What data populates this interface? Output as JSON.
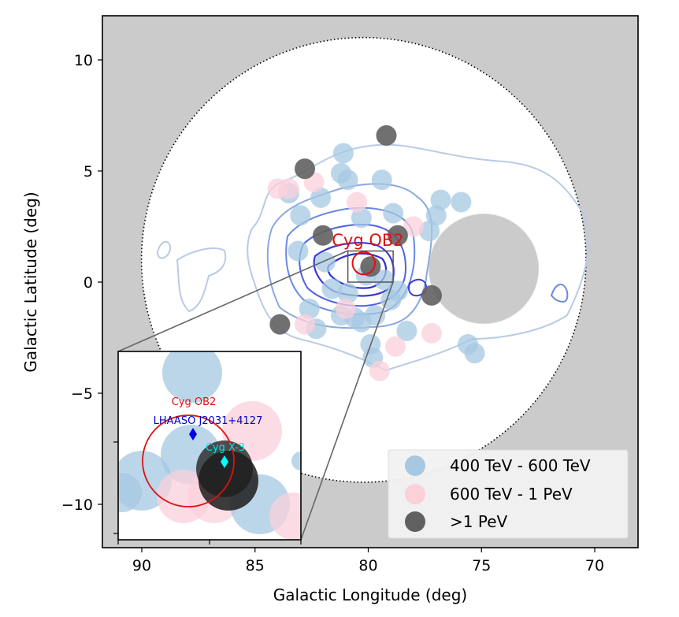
{
  "chart_data": {
    "type": "scatter",
    "xlabel": "Galactic Longitude (deg)",
    "ylabel": "Galactic Latitude (deg)",
    "xlim": [
      92,
      68
    ],
    "ylim": [
      -12,
      12
    ],
    "xticks": [
      90,
      85,
      80,
      75,
      70
    ],
    "yticks": [
      10,
      5,
      0,
      -5,
      -10
    ],
    "xtick_labels": [
      "90",
      "85",
      "80",
      "75",
      "70"
    ],
    "ytick_labels": [
      "10",
      "5",
      "0",
      "−5",
      "−10"
    ],
    "roi_circle": {
      "l": 80.2,
      "b": 1.0,
      "radius_deg": 9.9,
      "style": "dotted"
    },
    "masked_region": {
      "l": 74.9,
      "b": 0.6,
      "radius_deg": 2.45
    },
    "legend": {
      "position": "lower-right",
      "entries": [
        {
          "label": "400 TeV - 600 TeV",
          "color": "#a6c8e2"
        },
        {
          "label": "600 TeV - 1 PeV",
          "color": "#fbd0db"
        },
        {
          "label": ">1 PeV",
          "color": "#606060"
        }
      ]
    },
    "series": [
      {
        "name": "400 TeV - 600 TeV",
        "color": "#a6c8e2",
        "points": [
          [
            81.1,
            5.8
          ],
          [
            81.2,
            4.9
          ],
          [
            80.9,
            4.6
          ],
          [
            79.4,
            4.6
          ],
          [
            83.5,
            4.0
          ],
          [
            82.1,
            3.8
          ],
          [
            83.0,
            3.0
          ],
          [
            80.3,
            2.9
          ],
          [
            78.9,
            3.1
          ],
          [
            76.8,
            3.7
          ],
          [
            75.9,
            3.6
          ],
          [
            77.0,
            3.0
          ],
          [
            77.3,
            2.3
          ],
          [
            83.1,
            1.4
          ],
          [
            81.9,
            0.9
          ],
          [
            80.1,
            0.3
          ],
          [
            79.3,
            0.1
          ],
          [
            81.6,
            -0.3
          ],
          [
            82.6,
            -1.2
          ],
          [
            81.2,
            -1.5
          ],
          [
            80.3,
            -1.8
          ],
          [
            79.7,
            -1.5
          ],
          [
            78.3,
            -2.2
          ],
          [
            80.6,
            -1.6
          ],
          [
            79.0,
            -0.8
          ],
          [
            79.9,
            -2.8
          ],
          [
            79.8,
            -3.4
          ],
          [
            82.3,
            -2.1
          ],
          [
            75.6,
            -2.8
          ],
          [
            75.3,
            -3.2
          ],
          [
            80.9,
            -0.5
          ],
          [
            78.7,
            -0.4
          ]
        ]
      },
      {
        "name": "600 TeV - 1 PeV",
        "color": "#fbd0db",
        "points": [
          [
            84.0,
            4.2
          ],
          [
            83.5,
            4.2
          ],
          [
            82.4,
            4.5
          ],
          [
            80.5,
            3.6
          ],
          [
            81.0,
            -1.2
          ],
          [
            78.0,
            2.5
          ],
          [
            82.8,
            -1.9
          ],
          [
            78.8,
            -2.9
          ],
          [
            77.2,
            -2.3
          ],
          [
            79.5,
            -4.0
          ]
        ]
      },
      {
        "name": ">1 PeV",
        "color": "#606060",
        "points": [
          [
            79.2,
            6.6
          ],
          [
            82.8,
            5.1
          ],
          [
            82.0,
            2.1
          ],
          [
            78.7,
            2.1
          ],
          [
            79.9,
            0.7
          ],
          [
            77.2,
            -0.6
          ],
          [
            83.9,
            -1.9
          ]
        ]
      }
    ],
    "annotations": [
      {
        "text": "Cyg OB2",
        "l": 79.8,
        "b": 1.8,
        "color": "#dd1111"
      }
    ],
    "cyg_ob2_circle": {
      "l": 80.2,
      "b": 0.85,
      "radius_deg": 0.5,
      "color": "#dd1111"
    },
    "zoom_box": {
      "l": [
        80.9,
        78.9
      ],
      "b": [
        0.0,
        1.4
      ]
    },
    "inset": {
      "labels": [
        {
          "text": "Cyg OB2",
          "color": "#dd1111"
        },
        {
          "text": "LHAASO J2031+4127",
          "color": "#0000cc"
        },
        {
          "text": "Cyg X-3",
          "color": "#00e5ee"
        }
      ]
    }
  }
}
